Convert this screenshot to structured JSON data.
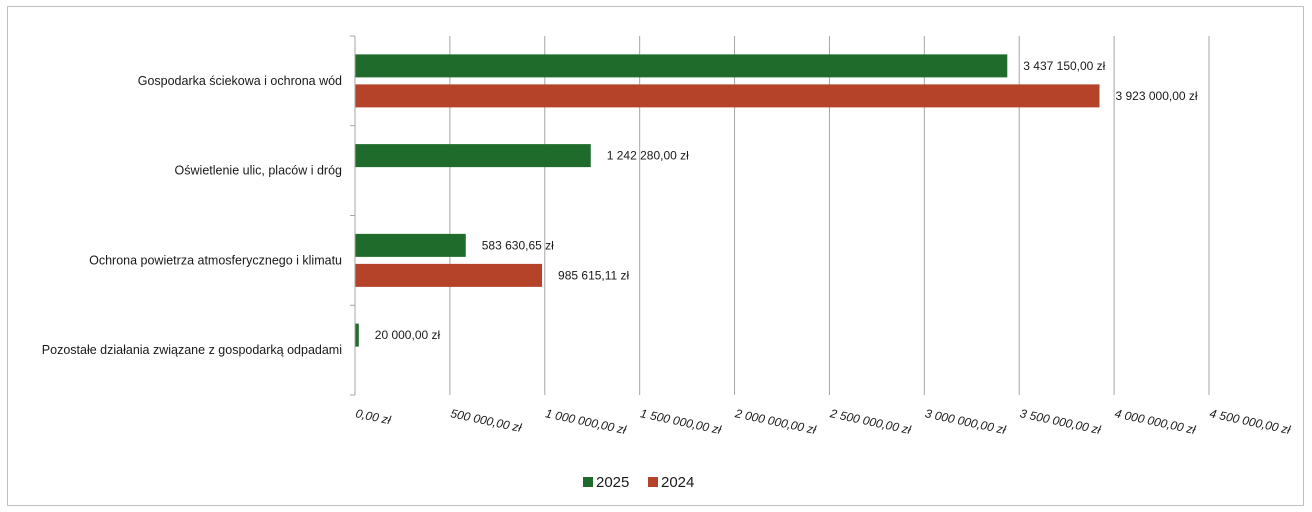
{
  "chart_data": {
    "type": "bar",
    "orientation": "horizontal",
    "categories": [
      "Gospodarka ściekowa i ochrona wód",
      "Oświetlenie ulic, placów i dróg",
      "Ochrona powietrza atmosferycznego i klimatu",
      "Pozostałe działania związane z gospodarką odpadami"
    ],
    "series": [
      {
        "name": "2025",
        "color": "#1e6b2b",
        "values": [
          3437150.0,
          1242280.0,
          583630.65,
          20000.0
        ],
        "labels": [
          "3 437 150,00 zł",
          "1 242 280,00 zł",
          "583 630,65 zł",
          "20 000,00 zł"
        ]
      },
      {
        "name": "2024",
        "color": "#b5432a",
        "values": [
          3923000.0,
          null,
          985615.11,
          null
        ],
        "labels": [
          "3 923 000,00 zł",
          null,
          "985 615,11 zł",
          null
        ]
      }
    ],
    "xlim": [
      0,
      4500000
    ],
    "x_ticks": [
      0,
      500000,
      1000000,
      1500000,
      2000000,
      2500000,
      3000000,
      3500000,
      4000000,
      4500000
    ],
    "x_tick_labels": [
      "0,00 zł",
      "500 000,00 zł",
      "1 000 000,00 zł",
      "1 500 000,00 zł",
      "2 000 000,00 zł",
      "2 500 000,00 zł",
      "3 000 000,00 zł",
      "3 500 000,00 zł",
      "4 000 000,00 zł",
      "4 500 000,00 zł"
    ],
    "grid": true,
    "legend_position": "bottom",
    "title": "",
    "xlabel": "",
    "ylabel": ""
  }
}
